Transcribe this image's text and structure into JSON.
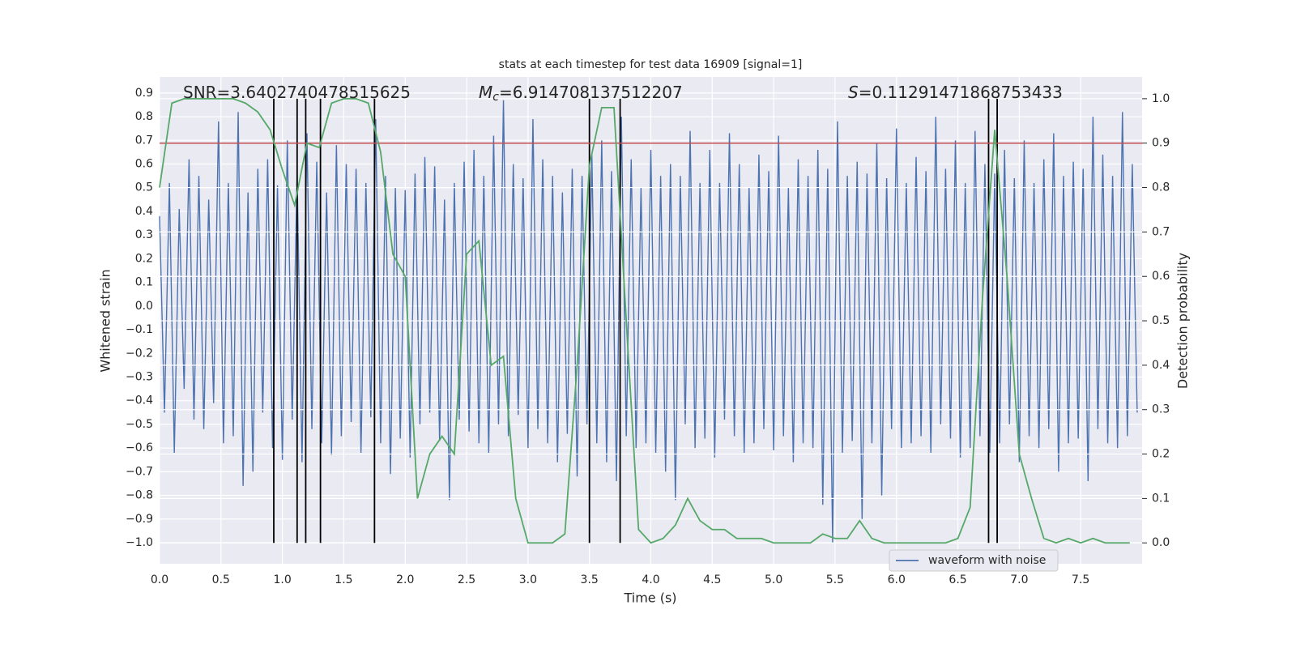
{
  "chart_data": {
    "type": "line",
    "title": "stats at each timestep for test data 16909 [signal=1]",
    "xlabel": "Time (s)",
    "ylabel": "Whitened strain",
    "y2label": "Detection probability",
    "annotations": [
      {
        "text": "SNR=3.6402740478515625"
      },
      {
        "symbol": "M",
        "subscript": "c",
        "text": "=6.914708137512207"
      },
      {
        "symbol": "S",
        "text": "=0.11291471868753433"
      }
    ],
    "xlim": [
      0,
      8
    ],
    "xticks": [
      {
        "value": 0,
        "label": "0.0"
      },
      0.5,
      {
        "value": 1,
        "label": "1.0"
      },
      1.5,
      {
        "value": 2,
        "label": "2.0"
      },
      2.5,
      {
        "value": 3,
        "label": "3.0"
      },
      3.5,
      {
        "value": 4,
        "label": "4.0"
      },
      4.5,
      {
        "value": 5,
        "label": "5.0"
      },
      5.5,
      {
        "value": 6,
        "label": "6.0"
      },
      6.5,
      {
        "value": 7,
        "label": "7.0"
      },
      7.5
    ],
    "ylim": [
      -1.089,
      0.968
    ],
    "yticks": [
      0.9,
      0.8,
      0.7,
      0.6,
      0.5,
      0.4,
      0.3,
      0.2,
      0.1,
      {
        "value": 0,
        "label": "0.0"
      },
      {
        "value": -0.1,
        "label": "−0.1"
      },
      {
        "value": -0.2,
        "label": "−0.2"
      },
      {
        "value": -0.3,
        "label": "−0.3"
      },
      {
        "value": -0.4,
        "label": "−0.4"
      },
      {
        "value": -0.5,
        "label": "−0.5"
      },
      {
        "value": -0.6,
        "label": "−0.6"
      },
      {
        "value": -0.7,
        "label": "−0.7"
      },
      {
        "value": -0.8,
        "label": "−0.8"
      },
      {
        "value": -0.9,
        "label": "−0.9"
      },
      {
        "value": -1,
        "label": "−1.0"
      }
    ],
    "y2lim": [
      -0.047,
      1.049
    ],
    "y2ticks": [
      {
        "value": 0,
        "label": "0.0"
      },
      0.1,
      0.2,
      0.3,
      0.4,
      0.5,
      0.6,
      0.7,
      0.8,
      0.9,
      {
        "value": 1,
        "label": "1.0"
      }
    ],
    "grid": true,
    "legend": "lower right",
    "series": [
      {
        "name": "waveform with noise",
        "color": "#4c72b0",
        "x": [
          0,
          0.04,
          0.08,
          0.12,
          0.16,
          0.2,
          0.24,
          0.28,
          0.32,
          0.36,
          0.4,
          0.44,
          0.48,
          0.52,
          0.56,
          0.6,
          0.64,
          0.68,
          0.72,
          0.76,
          0.8,
          0.84,
          0.88,
          0.92,
          0.96,
          1,
          1.04,
          1.08,
          1.12,
          1.16,
          1.2,
          1.24,
          1.28,
          1.32,
          1.36,
          1.4,
          1.44,
          1.48,
          1.52,
          1.56,
          1.6,
          1.64,
          1.68,
          1.72,
          1.76,
          1.8,
          1.84,
          1.88,
          1.92,
          1.96,
          2,
          2.04,
          2.08,
          2.12,
          2.16,
          2.2,
          2.24,
          2.28,
          2.32,
          2.36,
          2.4,
          2.44,
          2.48,
          2.52,
          2.56,
          2.6,
          2.64,
          2.68,
          2.72,
          2.76,
          2.8,
          2.84,
          2.88,
          2.92,
          2.96,
          3,
          3.04,
          3.08,
          3.12,
          3.16,
          3.2,
          3.24,
          3.28,
          3.32,
          3.36,
          3.4,
          3.44,
          3.48,
          3.52,
          3.56,
          3.6,
          3.64,
          3.68,
          3.72,
          3.76,
          3.8,
          3.84,
          3.88,
          3.92,
          3.96,
          4,
          4.04,
          4.08,
          4.12,
          4.16,
          4.2,
          4.24,
          4.28,
          4.32,
          4.36,
          4.4,
          4.44,
          4.48,
          4.52,
          4.56,
          4.6,
          4.64,
          4.68,
          4.72,
          4.76,
          4.8,
          4.84,
          4.88,
          4.92,
          4.96,
          5,
          5.04,
          5.08,
          5.12,
          5.16,
          5.2,
          5.24,
          5.28,
          5.32,
          5.36,
          5.4,
          5.44,
          5.48,
          5.52,
          5.56,
          5.6,
          5.64,
          5.68,
          5.72,
          5.76,
          5.8,
          5.84,
          5.88,
          5.92,
          5.96,
          6,
          6.04,
          6.08,
          6.12,
          6.16,
          6.2,
          6.24,
          6.28,
          6.32,
          6.36,
          6.4,
          6.44,
          6.48,
          6.52,
          6.56,
          6.6,
          6.64,
          6.68,
          6.72,
          6.76,
          6.8,
          6.84,
          6.88,
          6.92,
          6.96,
          7,
          7.04,
          7.08,
          7.12,
          7.16,
          7.2,
          7.24,
          7.28,
          7.32,
          7.36,
          7.4,
          7.44,
          7.48,
          7.52,
          7.56,
          7.6,
          7.64,
          7.68,
          7.72,
          7.76,
          7.8,
          7.84,
          7.88,
          7.92,
          7.96
        ],
        "values": [
          0.38,
          -0.45,
          0.52,
          -0.62,
          0.41,
          -0.35,
          0.62,
          -0.48,
          0.55,
          -0.52,
          0.45,
          -0.41,
          0.78,
          -0.58,
          0.52,
          -0.55,
          0.82,
          -0.76,
          0.48,
          -0.7,
          0.58,
          -0.45,
          0.62,
          -0.6,
          0.51,
          -0.65,
          0.7,
          -0.48,
          0.56,
          -0.66,
          0.73,
          -0.52,
          0.61,
          -0.58,
          0.48,
          -0.63,
          0.68,
          -0.55,
          0.6,
          -0.49,
          0.58,
          -0.62,
          0.52,
          -0.47,
          0.79,
          -0.58,
          0.55,
          -0.71,
          0.5,
          -0.56,
          0.49,
          -0.64,
          0.56,
          -0.5,
          0.63,
          -0.45,
          0.59,
          -0.57,
          0.45,
          -0.82,
          0.52,
          -0.48,
          0.61,
          -0.53,
          0.66,
          -0.58,
          0.55,
          -0.62,
          0.72,
          -0.5,
          0.87,
          -0.55,
          0.6,
          -0.46,
          0.54,
          -0.6,
          0.79,
          -0.52,
          0.62,
          -0.58,
          0.55,
          -0.66,
          0.48,
          -0.54,
          0.58,
          -0.72,
          0.55,
          -0.5,
          0.64,
          -0.58,
          0.7,
          -0.66,
          0.57,
          -0.74,
          0.8,
          -0.55,
          0.62,
          -0.6,
          0.5,
          -0.58,
          0.66,
          -0.62,
          0.55,
          -0.7,
          0.6,
          -0.82,
          0.55,
          -0.5,
          0.74,
          -0.6,
          0.52,
          -0.56,
          0.66,
          -0.64,
          0.52,
          -0.48,
          0.73,
          -0.55,
          0.6,
          -0.62,
          0.5,
          -0.58,
          0.64,
          -0.52,
          0.57,
          -0.61,
          0.72,
          -0.55,
          0.5,
          -0.66,
          0.62,
          -0.58,
          0.55,
          -0.6,
          0.66,
          -0.84,
          0.58,
          -1,
          0.78,
          -0.62,
          0.55,
          -0.57,
          0.61,
          -0.9,
          0.56,
          -0.58,
          0.69,
          -0.8,
          0.54,
          -0.52,
          0.75,
          -0.6,
          0.52,
          -0.58,
          0.63,
          -0.55,
          0.57,
          -0.62,
          0.8,
          -0.5,
          0.58,
          -0.56,
          0.7,
          -0.64,
          0.52,
          -0.6,
          0.74,
          -0.55,
          0.6,
          -0.62,
          0.56,
          -0.58,
          0.66,
          -0.5,
          0.54,
          -0.66,
          0.7,
          -0.55,
          0.52,
          -0.6,
          0.62,
          -0.52,
          0.73,
          -0.7,
          0.55,
          -0.58,
          0.61,
          -0.56,
          0.58,
          -0.74,
          0.8,
          -0.52,
          0.64,
          -0.58,
          0.55,
          -0.6,
          0.82,
          -0.55,
          0.6,
          -0.45
        ]
      },
      {
        "color": "#55a868",
        "axis": "y2",
        "x": [
          0,
          0.1,
          0.2,
          0.3,
          0.4,
          0.5,
          0.6,
          0.7,
          0.8,
          0.9,
          1,
          1.1,
          1.2,
          1.3,
          1.4,
          1.5,
          1.6,
          1.7,
          1.8,
          1.9,
          2,
          2.1,
          2.2,
          2.3,
          2.4,
          2.5,
          2.6,
          2.7,
          2.8,
          2.9,
          3,
          3.1,
          3.2,
          3.3,
          3.4,
          3.5,
          3.6,
          3.7,
          3.8,
          3.9,
          4,
          4.1,
          4.2,
          4.3,
          4.4,
          4.5,
          4.6,
          4.7,
          4.8,
          4.9,
          5,
          5.1,
          5.2,
          5.3,
          5.4,
          5.5,
          5.6,
          5.7,
          5.8,
          5.9,
          6,
          6.1,
          6.2,
          6.3,
          6.4,
          6.5,
          6.6,
          6.7,
          6.8,
          6.9,
          7,
          7.1,
          7.2,
          7.3,
          7.4,
          7.5,
          7.6,
          7.7,
          7.8,
          7.9
        ],
        "values": [
          0.8,
          0.99,
          1,
          1,
          1,
          1,
          1,
          0.99,
          0.97,
          0.93,
          0.84,
          0.76,
          0.9,
          0.89,
          0.99,
          1,
          1,
          0.99,
          0.88,
          0.65,
          0.6,
          0.1,
          0.2,
          0.24,
          0.2,
          0.65,
          0.68,
          0.4,
          0.42,
          0.1,
          0,
          0,
          0,
          0.02,
          0.4,
          0.85,
          0.98,
          0.98,
          0.5,
          0.03,
          0,
          0.01,
          0.04,
          0.1,
          0.05,
          0.03,
          0.03,
          0.01,
          0.01,
          0.01,
          0,
          0,
          0,
          0,
          0.02,
          0.01,
          0.01,
          0.05,
          0.01,
          0,
          0,
          0,
          0,
          0,
          0,
          0.01,
          0.08,
          0.55,
          0.93,
          0.6,
          0.2,
          0.1,
          0.01,
          0,
          0.01,
          0,
          0.01,
          0,
          0,
          0
        ]
      }
    ],
    "vlines": {
      "x": [
        0.93,
        1.12,
        1.19,
        1.31,
        1.75,
        3.5,
        3.75,
        6.75,
        6.82
      ],
      "ymin": 0,
      "ymax": 1,
      "axis": "y2",
      "color": "#000000"
    },
    "hline": {
      "y": 0.9,
      "axis": "y2",
      "color": "#c44e52"
    }
  }
}
